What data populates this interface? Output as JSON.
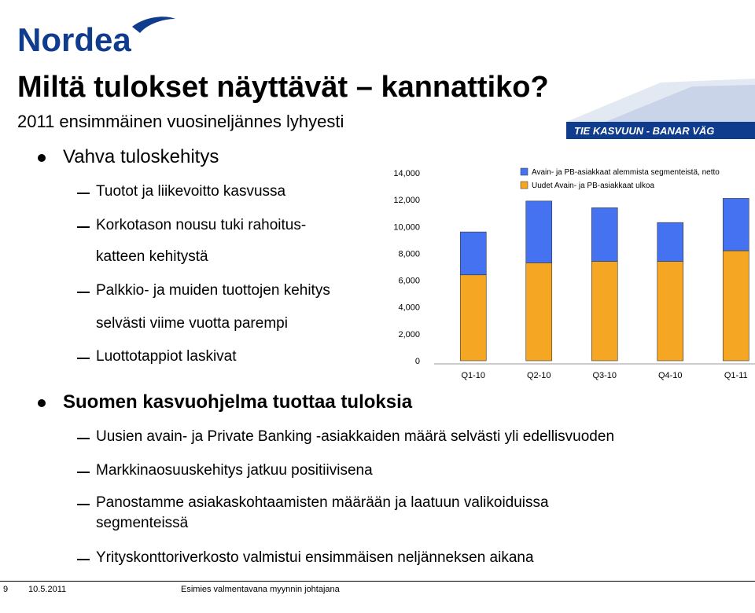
{
  "header": {
    "logo_text": "Nordea",
    "slogan": "TIE KASVUUN - BANAR VÄG",
    "title": "Miltä tulokset näyttävät – kannattiko?",
    "subtitle": "2011 ensimmäinen vuosineljännes lyhyesti"
  },
  "bullets": [
    {
      "text": "Vahva tuloskehitys",
      "subs": [
        "Tuotot ja liikevoitto kasvussa",
        "Korkotason nousu tuki rahoitus-",
        "katteen kehitystä",
        "Palkkio- ja muiden tuottojen kehitys",
        "selvästi viime vuotta parempi",
        "Luottotappiot laskivat"
      ]
    },
    {
      "text": "Suomen kasvuohjelma tuottaa tuloksia",
      "subs": [
        "Uusien avain- ja Private Banking -asiakkaiden määrä selvästi yli edellisvuoden",
        "Markkinaosuuskehitys jatkuu positiivisena",
        "Panostamme asiakaskohtaamisten määrään ja laatuun valikoiduissa",
        "segmenteissä",
        "Yrityskonttoriverkosto valmistui ensimmäisen neljänneksen aikana"
      ]
    }
  ],
  "footer": {
    "page": "9",
    "date": "10.5.2011",
    "caption": "Esimies valmentavana myynnin johtajana"
  },
  "colors": {
    "brand": "#0f3c8c",
    "series_blue": "#4472f0",
    "series_orange": "#f5a623"
  },
  "chart_data": {
    "type": "bar",
    "stacked": true,
    "categories": [
      "Q1-10",
      "Q2-10",
      "Q3-10",
      "Q4-10",
      "Q1-11"
    ],
    "series": [
      {
        "name": "Uudet Avain- ja PB-asiakkaat ulkoa",
        "color": "#f5a623",
        "values": [
          6400,
          7300,
          7400,
          7400,
          8200
        ]
      },
      {
        "name": "Avain- ja PB-asiakkaat alemmista segmenteistä, netto",
        "color": "#4472f0",
        "values": [
          3200,
          4600,
          4000,
          2900,
          3900
        ]
      }
    ],
    "ylim": [
      0,
      14000
    ],
    "yticks": [
      "0",
      "2,000",
      "4,000",
      "6,000",
      "8,000",
      "10,000",
      "12,000",
      "14,000"
    ],
    "legend_position": "top-right",
    "grid": false
  }
}
